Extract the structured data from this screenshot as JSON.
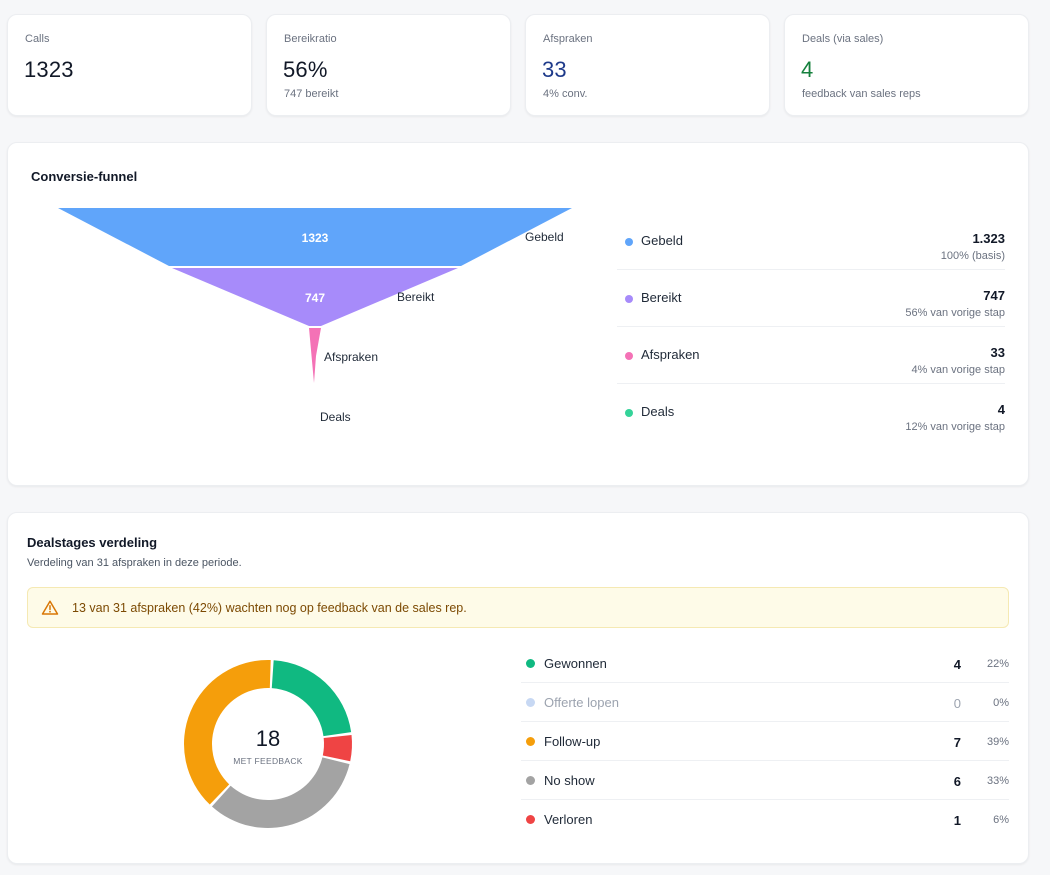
{
  "kpis": [
    {
      "label": "Calls",
      "value": "1323",
      "sub": "",
      "color": "#111827"
    },
    {
      "label": "Bereikratio",
      "value": "56%",
      "sub": "747 bereikt",
      "color": "#111827"
    },
    {
      "label": "Afspraken",
      "value": "33",
      "sub": "4% conv.",
      "color": "#1e3a8a"
    },
    {
      "label": "Deals (via sales)",
      "value": "4",
      "sub": "feedback van sales reps",
      "color": "#15803d"
    }
  ],
  "funnel": {
    "title": "Conversie-funnel",
    "legend": [
      {
        "name": "Gebeld",
        "value": "1.323",
        "pct": "100% (basis)",
        "color": "#60a5fa"
      },
      {
        "name": "Bereikt",
        "value": "747",
        "pct": "56% van vorige stap",
        "color": "#a78bfa"
      },
      {
        "name": "Afspraken",
        "value": "33",
        "pct": "4% van vorige stap",
        "color": "#f472b6"
      },
      {
        "name": "Deals",
        "value": "4",
        "pct": "12% van vorige stap",
        "color": "#34d399"
      }
    ]
  },
  "chart_data": {
    "type": "funnel",
    "stages": [
      "Gebeld",
      "Bereikt",
      "Afspraken",
      "Deals"
    ],
    "values": [
      1323,
      747,
      33,
      4
    ],
    "value_labels": [
      "1323",
      "747",
      "",
      ""
    ],
    "colors": [
      "#60a5fa",
      "#a78bfa",
      "#f472b6",
      "#34d399"
    ]
  },
  "dealstages": {
    "title": "Dealstages verdeling",
    "subtitle": "Verdeling van 31 afspraken in deze periode.",
    "alert": "13 van 31 afspraken (42%) wachten nog op feedback van de sales rep.",
    "center_value": "18",
    "center_label": "MET FEEDBACK",
    "rows": [
      {
        "name": "Gewonnen",
        "count": "4",
        "pct": "22%",
        "color": "#10b981",
        "muted": false
      },
      {
        "name": "Offerte lopen",
        "count": "0",
        "pct": "0%",
        "color": "#c7d8f3",
        "muted": true
      },
      {
        "name": "Follow-up",
        "count": "7",
        "pct": "39%",
        "color": "#f59e0b",
        "muted": false
      },
      {
        "name": "No show",
        "count": "6",
        "pct": "33%",
        "color": "#a3a3a3",
        "muted": false
      },
      {
        "name": "Verloren",
        "count": "1",
        "pct": "6%",
        "color": "#ef4444",
        "muted": false
      }
    ],
    "donut": {
      "values": [
        4,
        0,
        7,
        6,
        1
      ],
      "order": [
        0,
        4,
        3,
        2
      ]
    }
  }
}
